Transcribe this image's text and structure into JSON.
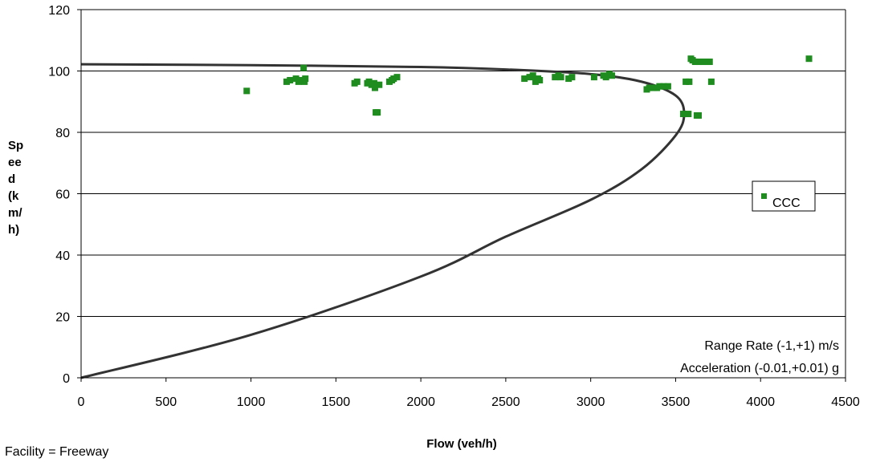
{
  "chart_data": {
    "type": "scatter",
    "xlabel": "Flow (veh/h)",
    "ylabel_lines": [
      "Sp",
      "ee",
      "d",
      "(k",
      "m/",
      "h)"
    ],
    "xlim": [
      0,
      4500
    ],
    "ylim": [
      0,
      120
    ],
    "x_ticks": [
      "0",
      "500",
      "1000",
      "1500",
      "2000",
      "2500",
      "3000",
      "3500",
      "4000",
      "4500"
    ],
    "y_ticks": [
      "0",
      "20",
      "40",
      "60",
      "80",
      "100",
      "120"
    ],
    "grid": "horizontal",
    "legend_position": "right",
    "annotations": [
      "Range Rate (-1,+1) m/s",
      "Acceleration (-0.01,+0.01) g"
    ],
    "footnote": "Facility = Freeway",
    "marker_color": "#1e8c1e",
    "curve_color": "#333333",
    "series": [
      {
        "name": "CCC",
        "type": "scatter",
        "points": [
          [
            975,
            93.5
          ],
          [
            1210,
            96.5
          ],
          [
            1230,
            97
          ],
          [
            1265,
            97.5
          ],
          [
            1280,
            96.5
          ],
          [
            1300,
            97
          ],
          [
            1310,
            101
          ],
          [
            1315,
            96.5
          ],
          [
            1320,
            97.5
          ],
          [
            1610,
            96
          ],
          [
            1625,
            96.5
          ],
          [
            1685,
            96
          ],
          [
            1695,
            96.5
          ],
          [
            1710,
            95.5
          ],
          [
            1725,
            96
          ],
          [
            1730,
            94.5
          ],
          [
            1735,
            86.5
          ],
          [
            1745,
            86.5
          ],
          [
            1755,
            95.5
          ],
          [
            1815,
            96.5
          ],
          [
            1830,
            97
          ],
          [
            1840,
            97.5
          ],
          [
            1860,
            98
          ],
          [
            2610,
            97.5
          ],
          [
            2640,
            98
          ],
          [
            2660,
            98.5
          ],
          [
            2675,
            96.5
          ],
          [
            2690,
            97.5
          ],
          [
            2700,
            97
          ],
          [
            2790,
            98
          ],
          [
            2810,
            98.5
          ],
          [
            2825,
            98
          ],
          [
            2870,
            97.5
          ],
          [
            2890,
            98
          ],
          [
            3020,
            98
          ],
          [
            3075,
            98.5
          ],
          [
            3090,
            98
          ],
          [
            3110,
            99
          ],
          [
            3125,
            98.5
          ],
          [
            3330,
            94
          ],
          [
            3345,
            94.5
          ],
          [
            3370,
            94.5
          ],
          [
            3390,
            94.5
          ],
          [
            3405,
            95
          ],
          [
            3430,
            95
          ],
          [
            3455,
            95
          ],
          [
            3545,
            86
          ],
          [
            3560,
            96.5
          ],
          [
            3575,
            86
          ],
          [
            3580,
            96.5
          ],
          [
            3590,
            104
          ],
          [
            3600,
            103.5
          ],
          [
            3615,
            103
          ],
          [
            3625,
            85.5
          ],
          [
            3635,
            85.5
          ],
          [
            3640,
            103
          ],
          [
            3660,
            103
          ],
          [
            3680,
            103
          ],
          [
            3700,
            103
          ],
          [
            3710,
            96.5
          ],
          [
            4285,
            104
          ]
        ]
      },
      {
        "name": "",
        "type": "line",
        "points": [
          [
            0,
            0
          ],
          [
            1000,
            14
          ],
          [
            2000,
            33
          ],
          [
            2500,
            46
          ],
          [
            3000,
            58
          ],
          [
            3300,
            68
          ],
          [
            3500,
            79
          ],
          [
            3550,
            86
          ],
          [
            3500,
            92
          ],
          [
            3300,
            96.5
          ],
          [
            3000,
            99
          ],
          [
            2500,
            100.5
          ],
          [
            2000,
            101.3
          ],
          [
            1000,
            101.9
          ],
          [
            0,
            102.2
          ]
        ]
      }
    ]
  }
}
